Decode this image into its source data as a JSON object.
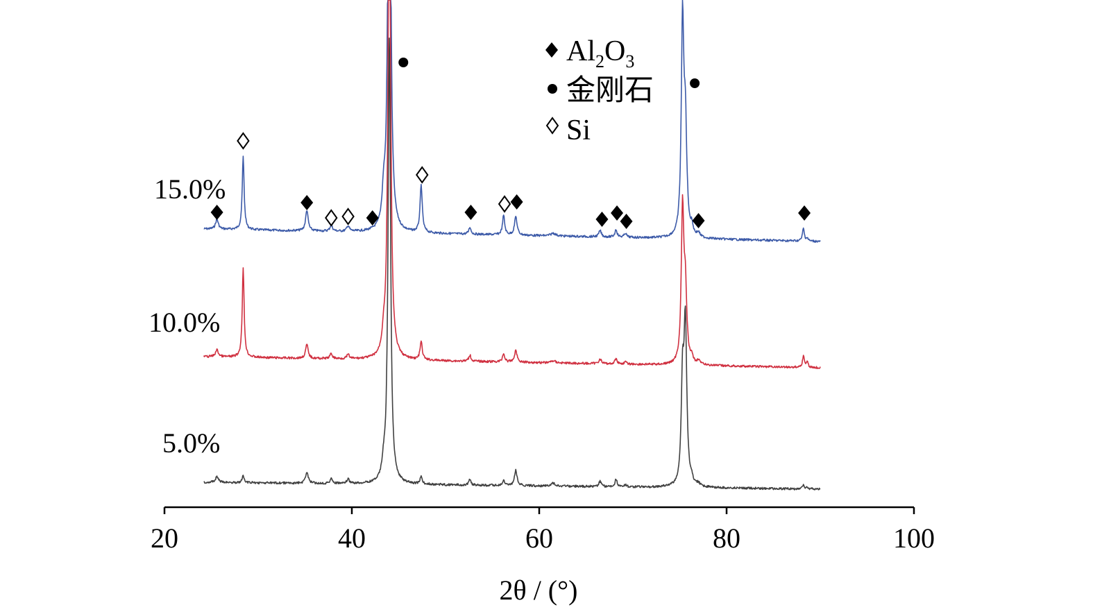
{
  "chart_data": {
    "type": "line",
    "xlabel": "2θ / (°)",
    "xlim": [
      20,
      100
    ],
    "x_ticks": [
      20,
      40,
      60,
      80,
      100
    ],
    "y_axis_shown": false,
    "grid": false,
    "legend": {
      "placement": "top-center",
      "entries": [
        {
          "marker": "filled-diamond",
          "label_main": "Al",
          "sub1": "2",
          "mid": "O",
          "sub2": "3"
        },
        {
          "marker": "filled-circle",
          "label": "金刚石"
        },
        {
          "marker": "open-diamond",
          "label": "Si"
        }
      ]
    },
    "series": [
      {
        "name": "15.0%",
        "color": "#3c5aa8",
        "baseline": 55,
        "slope": 18
      },
      {
        "name": "10.0%",
        "color": "#d03040",
        "baseline": 20,
        "slope": 16
      },
      {
        "name": "5.0%",
        "color": "#404040",
        "baseline": -32,
        "slope": 10
      }
    ],
    "peaks_2theta": {
      "Al2O3": [
        25.6,
        35.2,
        43.4,
        52.6,
        57.5,
        66.5,
        68.2,
        77.0,
        88.3
      ],
      "diamond": [
        44.0,
        75.4
      ],
      "Si": [
        28.4,
        47.4,
        56.2,
        37.8,
        39.6
      ]
    },
    "phase_markers": [
      {
        "phase": "Al2O3",
        "x": 25.6,
        "series": 0
      },
      {
        "phase": "Si",
        "x": 28.4,
        "series": 0
      },
      {
        "phase": "Al2O3",
        "x": 35.2,
        "series": 0
      },
      {
        "phase": "Si",
        "x": 37.8,
        "series": 0
      },
      {
        "phase": "Si",
        "x": 39.6,
        "series": 0
      },
      {
        "phase": "Al2O3",
        "x": 42.2,
        "series": 0
      },
      {
        "phase": "diamond",
        "x": 45.5,
        "series": 0
      },
      {
        "phase": "Si",
        "x": 47.5,
        "series": 0
      },
      {
        "phase": "Al2O3",
        "x": 52.7,
        "series": 0
      },
      {
        "phase": "Si",
        "x": 56.3,
        "series": 0
      },
      {
        "phase": "Al2O3",
        "x": 57.6,
        "series": 0
      },
      {
        "phase": "Al2O3",
        "x": 66.7,
        "series": 0
      },
      {
        "phase": "Al2O3",
        "x": 68.3,
        "series": 0
      },
      {
        "phase": "Al2O3",
        "x": 69.3,
        "series": 0
      },
      {
        "phase": "diamond",
        "x": 76.6,
        "series": 0
      },
      {
        "phase": "Al2O3",
        "x": 77.0,
        "series": 0
      },
      {
        "phase": "Al2O3",
        "x": 88.3,
        "series": 0
      }
    ]
  }
}
